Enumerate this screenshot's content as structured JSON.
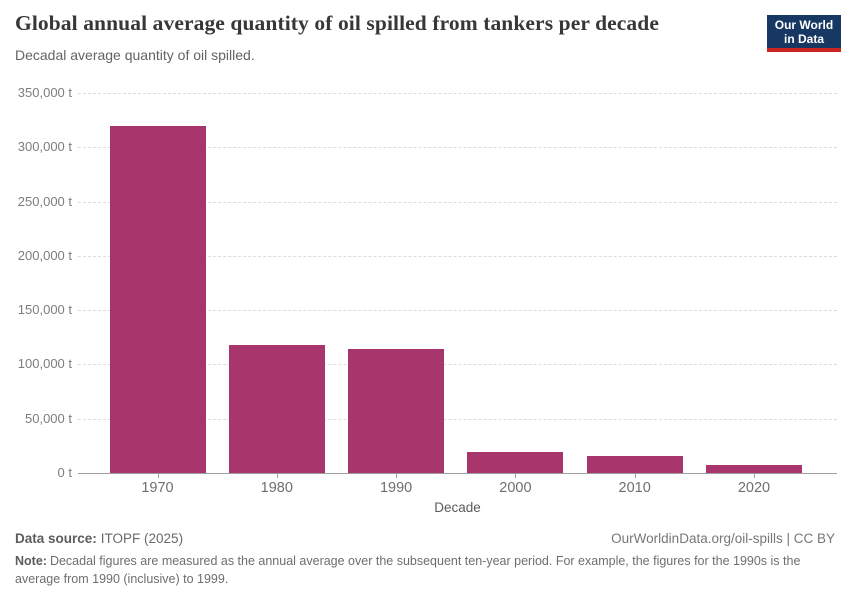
{
  "header": {
    "title": "Global annual average quantity of oil spilled from tankers per decade",
    "subtitle": "Decadal average quantity of oil spilled.",
    "logo": {
      "line1": "Our World",
      "line2": "in Data",
      "bg_color": "#173862",
      "accent_color": "#cb2420"
    }
  },
  "chart_data": {
    "type": "bar",
    "title": "Global annual average quantity of oil spilled from tankers per decade",
    "subtitle": "Decadal average quantity of oil spilled.",
    "categories": [
      "1970",
      "1980",
      "1990",
      "2000",
      "2010",
      "2020"
    ],
    "values": [
      320000,
      118000,
      114000,
      19500,
      16000,
      7500
    ],
    "xlabel": "Decade",
    "ylabel": "",
    "ylim": [
      0,
      350000
    ],
    "ytick_step": 50000,
    "ytick_suffix": " t",
    "grid": "horizontal-dashed",
    "legend": "none",
    "bar_color": "#a8356c"
  },
  "footer": {
    "source_label": "Data source:",
    "source_value": "ITOPF (2025)",
    "rights": "OurWorldinData.org/oil-spills | CC BY",
    "note_label": "Note:",
    "note_text": "Decadal figures are measured as the annual average over the subsequent ten-year period. For example, the figures for the 1990s is the average from 1990 (inclusive) to 1999."
  }
}
